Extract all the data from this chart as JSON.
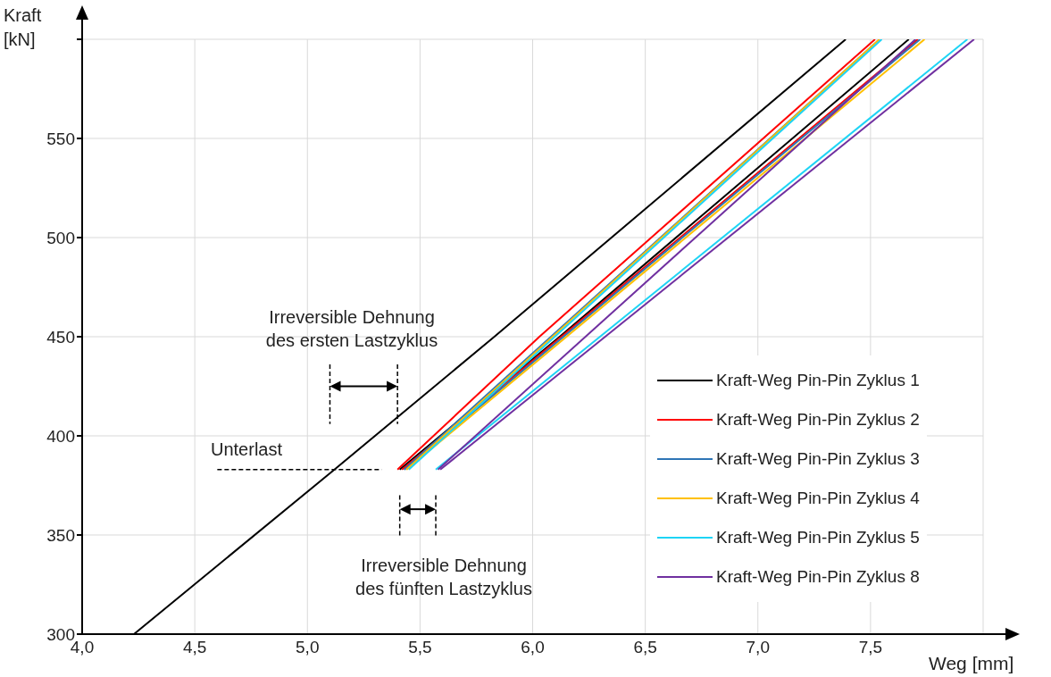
{
  "chart_data": {
    "type": "line",
    "xlabel": "Weg [mm]",
    "ylabel": "Kraft [kN]",
    "xlim": [
      4,
      8
    ],
    "ylim": [
      300,
      600
    ],
    "xticks": [
      {
        "value": 4,
        "label": "4,0"
      },
      {
        "value": 4.5,
        "label": "4,5"
      },
      {
        "value": 5,
        "label": "5,0"
      },
      {
        "value": 5.5,
        "label": "5,5"
      },
      {
        "value": 6,
        "label": "6,0"
      },
      {
        "value": 6.5,
        "label": "6,5"
      },
      {
        "value": 7,
        "label": "7,0"
      },
      {
        "value": 7.5,
        "label": "7,5"
      },
      {
        "value": 8,
        "label": null
      }
    ],
    "yticks": [
      300,
      350,
      400,
      450,
      500,
      550,
      {
        "value": 600,
        "label": null
      }
    ],
    "grid": true,
    "legend": "bottom right",
    "series": [
      {
        "name": "Kraft-Weg Pin-Pin Zyklus 1",
        "color": "#000000",
        "x": [
          4.23,
          5.12,
          5.83,
          7.39,
          null,
          7.67,
          6.12,
          5.41
        ],
        "values": [
          300,
          383,
          450,
          600,
          null,
          600,
          450,
          383
        ]
      },
      {
        "name": "Kraft-Weg Pin-Pin Zyklus 2",
        "color": "#ff0000",
        "x": [
          5.4,
          6.03,
          7.52,
          null,
          7.71,
          5.42
        ],
        "values": [
          383,
          450,
          600,
          null,
          600,
          383
        ]
      },
      {
        "name": "Kraft-Weg Pin-Pin Zyklus 3",
        "color": "#2e75b6",
        "x": [
          5.43,
          7.54,
          null,
          7.72,
          5.43
        ],
        "values": [
          383,
          600,
          null,
          600,
          383
        ]
      },
      {
        "name": "Kraft-Weg Pin-Pin Zyklus 4",
        "color": "#ffc000",
        "x": [
          5.44,
          7.54,
          null,
          7.74,
          5.44
        ],
        "values": [
          383,
          600,
          null,
          600,
          383
        ]
      },
      {
        "name": "Kraft-Weg Pin-Pin Zyklus 5",
        "color": "#1ed4f5",
        "x": [
          5.45,
          7.55,
          null,
          7.93,
          5.57
        ],
        "values": [
          383,
          600,
          null,
          600,
          383
        ]
      },
      {
        "name": "Kraft-Weg Pin-Pin Zyklus 8",
        "color": "#7030a0",
        "x": [
          5.58,
          7.7,
          null,
          7.96,
          5.59
        ],
        "values": [
          383,
          600,
          null,
          600,
          383
        ]
      }
    ],
    "annotations": [
      "Irreversible Dehnung\ndes ersten Lastzyklus",
      "Unterlast",
      "Irreversible Dehnung\ndes fünften Lastzyklus"
    ]
  }
}
